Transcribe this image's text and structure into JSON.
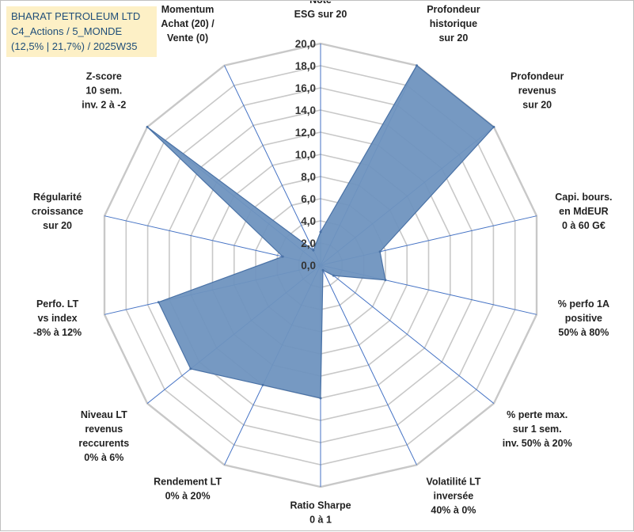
{
  "title_box": {
    "line1": "BHARAT PETROLEUM LTD",
    "line2": "C4_Actions / 5_MONDE",
    "line3": "(12,5% | 21,7%) / 2025W35"
  },
  "colors": {
    "fill": "#6f94bf",
    "stroke": "#4a72a6",
    "grid": "#c8c8c8",
    "spoke": "#4472c4",
    "title_bg": "#fdf0c6",
    "title_text": "#1f4e79"
  },
  "chart_data": {
    "type": "radar",
    "rlim": [
      0,
      20
    ],
    "ticks": [
      "0,0",
      "2,0",
      "4,0",
      "6,0",
      "8,0",
      "10,0",
      "12,0",
      "14,0",
      "16,0",
      "18,0",
      "20,0"
    ],
    "axes": [
      {
        "label": [
          "Note",
          "ESG sur 20"
        ],
        "anchor": "middle"
      },
      {
        "label": [
          "Profondeur",
          "historique",
          "sur 20"
        ],
        "anchor": "middle"
      },
      {
        "label": [
          "Profondeur",
          "revenus",
          "sur 20"
        ],
        "anchor": "middle"
      },
      {
        "label": [
          "Capi. bours.",
          "en MdEUR",
          "0 à 60 G€"
        ],
        "anchor": "middle"
      },
      {
        "label": [
          "% perfo 1A",
          "positive",
          "50% à 80%"
        ],
        "anchor": "middle"
      },
      {
        "label": [
          "% perte max.",
          "sur 1 sem.",
          "inv. 50% à 20%"
        ],
        "anchor": "middle"
      },
      {
        "label": [
          "Volatilité LT",
          "inversée",
          "40% à 0%"
        ],
        "anchor": "middle"
      },
      {
        "label": [
          "Ratio Sharpe",
          "0 à 1"
        ],
        "anchor": "middle"
      },
      {
        "label": [
          "Rendement LT",
          "0% à 20%"
        ],
        "anchor": "middle"
      },
      {
        "label": [
          "Niveau LT",
          "revenus",
          "reccurents",
          "0% à 6%"
        ],
        "anchor": "middle"
      },
      {
        "label": [
          "Perfo. LT",
          "vs index",
          "-8% à 12%"
        ],
        "anchor": "middle"
      },
      {
        "label": [
          "Régularité",
          "croissance",
          "sur 20"
        ],
        "anchor": "middle"
      },
      {
        "label": [
          "Z-score",
          "10 sem.",
          "inv. 2 à -2"
        ],
        "anchor": "middle"
      },
      {
        "label": [
          "Momentum",
          "Achat (20) /",
          "Vente (0)"
        ],
        "anchor": "middle"
      }
    ],
    "series": [
      {
        "values": [
          3.0,
          20.0,
          20.0,
          5.5,
          6.0,
          1.5,
          0.5,
          12.0,
          12.0,
          15.0,
          15.0,
          3.5,
          20.0,
          1.5
        ]
      }
    ]
  }
}
